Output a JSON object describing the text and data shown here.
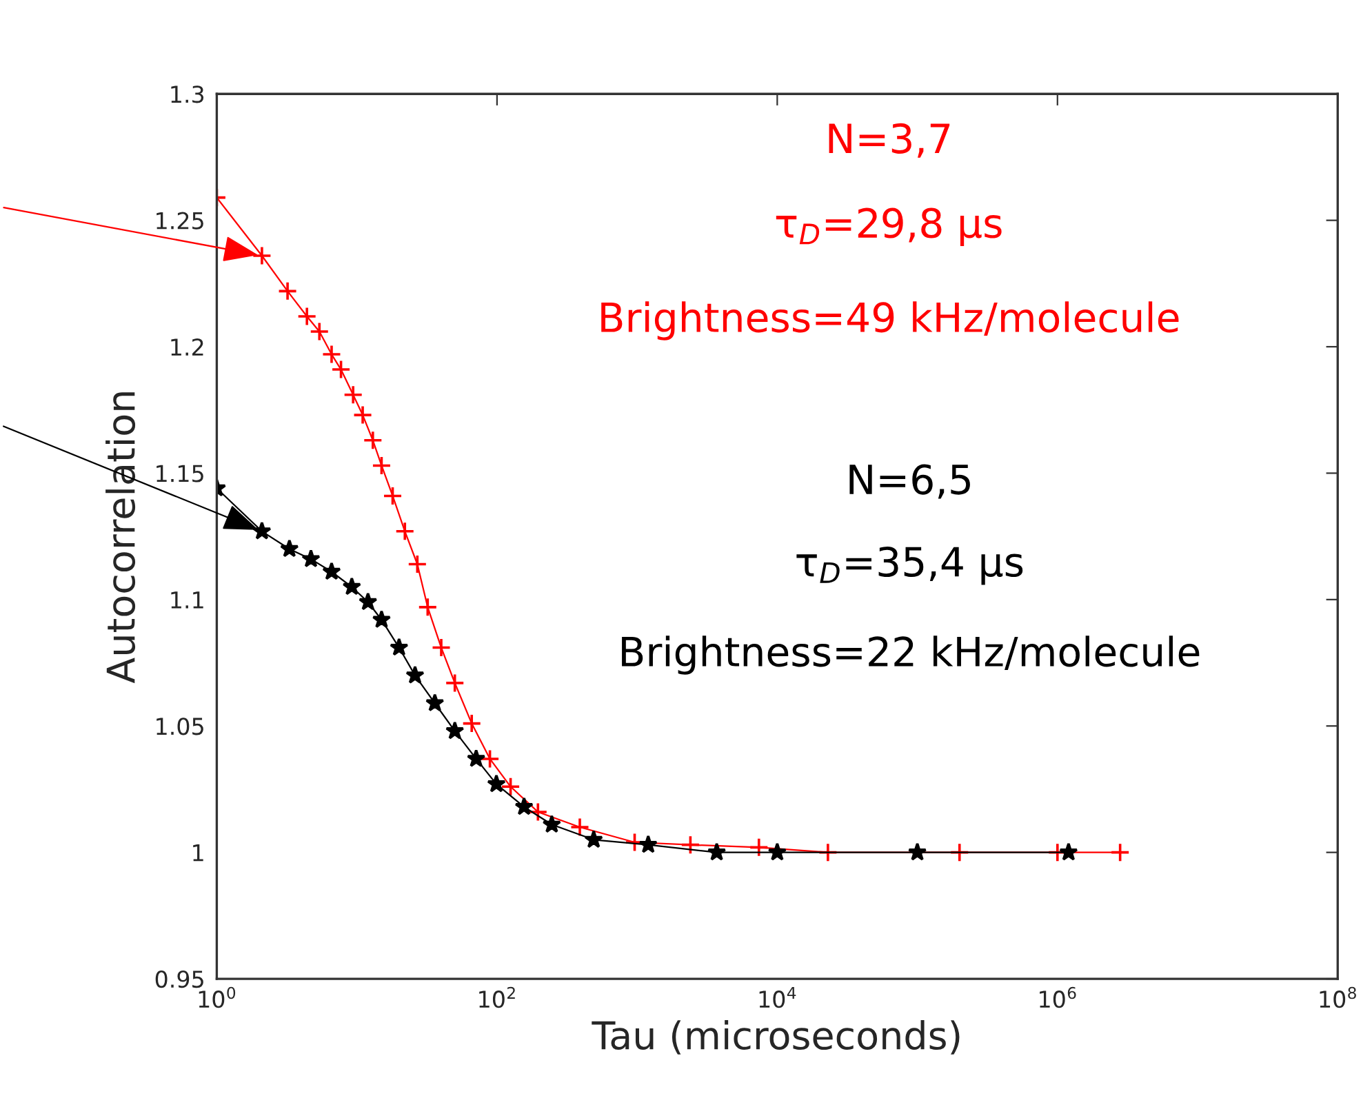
{
  "chart_data": {
    "type": "line",
    "xlabel": "Tau (microseconds)",
    "ylabel": "Autocorrelation",
    "log": "x",
    "xlim": [
      1,
      100000000
    ],
    "ylim": [
      0.95,
      1.3
    ],
    "xticks": [
      {
        "value": 1,
        "label": "10$^{0}$"
      },
      {
        "value": 100,
        "label": "10$^{2}$"
      },
      {
        "value": 10000,
        "label": "10$^{4}$"
      },
      {
        "value": 1000000,
        "label": "10$^{6}$"
      },
      {
        "value": 100000000,
        "label": "10$^{8}$"
      }
    ],
    "yticks": [
      0.95,
      1,
      1.05,
      1.1,
      1.15,
      1.2,
      1.25,
      1.3
    ],
    "grid": false,
    "legend": false,
    "line_style": "solid",
    "series": [
      {
        "color": "#ff0000",
        "marker": "cross",
        "x": [
          1.0,
          2.1,
          3.2,
          4.4,
          5.4,
          6.6,
          7.7,
          9.4,
          11,
          13,
          15,
          18,
          22,
          27,
          32,
          40,
          50,
          66,
          89,
          125,
          196,
          390,
          960,
          2400,
          7400,
          23000,
          200000,
          1000000,
          2800000
        ],
        "values": [
          1.259,
          1.236,
          1.222,
          1.212,
          1.206,
          1.197,
          1.191,
          1.181,
          1.173,
          1.163,
          1.153,
          1.141,
          1.127,
          1.114,
          1.097,
          1.081,
          1.067,
          1.051,
          1.037,
          1.026,
          1.016,
          1.01,
          1.004,
          1.003,
          1.002,
          1.0,
          1.0,
          1.0,
          1.0
        ]
      },
      {
        "color": "#000000",
        "marker": "star",
        "x": [
          1.0,
          2.1,
          3.3,
          4.7,
          6.6,
          9.2,
          12,
          15,
          20,
          26,
          36,
          50,
          71,
          99,
          156,
          246,
          490,
          1200,
          3700,
          10000,
          100000,
          1200000
        ],
        "values": [
          1.144,
          1.127,
          1.12,
          1.116,
          1.111,
          1.105,
          1.099,
          1.092,
          1.081,
          1.07,
          1.059,
          1.048,
          1.037,
          1.027,
          1.018,
          1.011,
          1.005,
          1.003,
          1.0,
          1.0,
          1.0,
          1.0
        ]
      }
    ],
    "annotations": [
      "N=3,7",
      "τ$_{D}$=29,8 µs",
      "Brightness=49 kHz/molecule",
      "N=6,5",
      "τ$_{D}$=35,4 µs",
      "Brightness=22 kHz/molecule"
    ]
  }
}
